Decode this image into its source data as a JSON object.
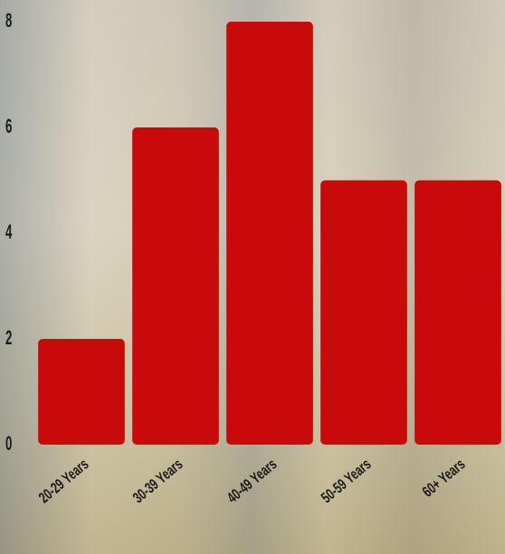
{
  "chart_data": {
    "type": "bar",
    "categories": [
      "20-29 Years",
      "30-39 Years",
      "40-49 Years",
      "50-59 Years",
      "60+ Years"
    ],
    "values": [
      2,
      6,
      8,
      5,
      5
    ],
    "color": "#c80a0a",
    "ylim": [
      0,
      8
    ],
    "yticks": [
      0,
      2,
      4,
      6,
      8
    ],
    "grid": false
  }
}
